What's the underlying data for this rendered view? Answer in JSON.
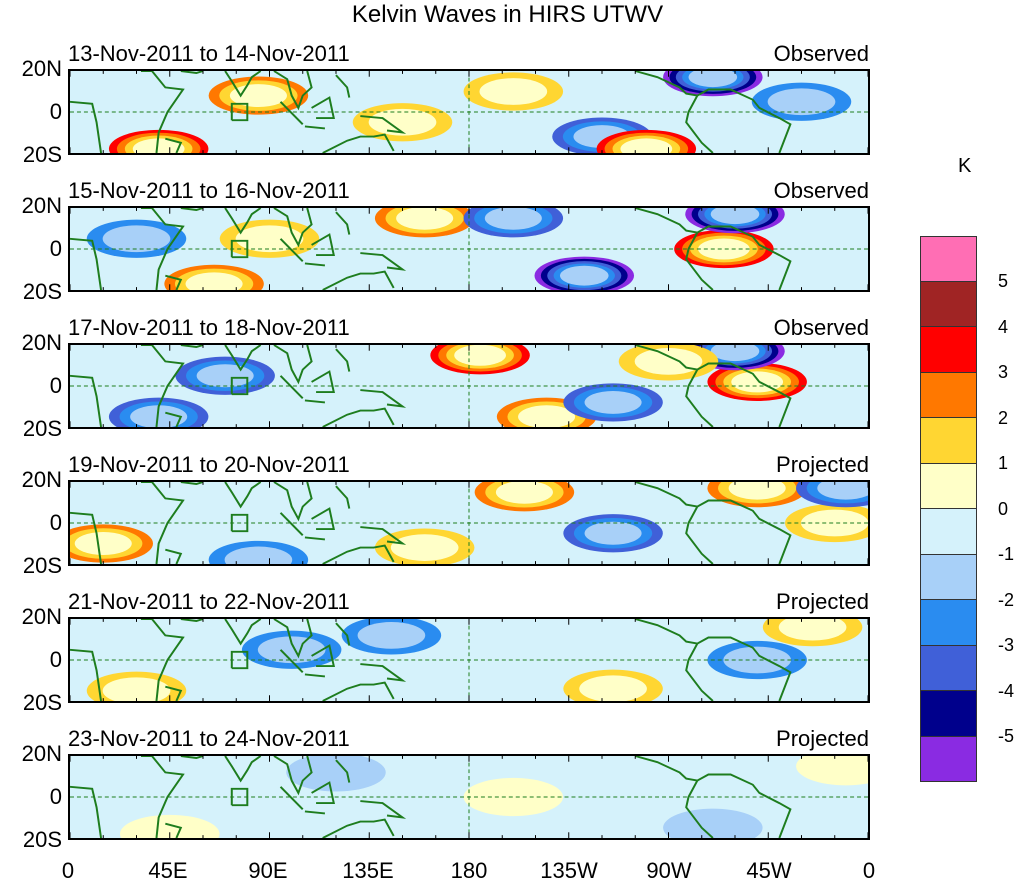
{
  "figure": {
    "title": "Kelvin Waves in HIRS UTWV"
  },
  "panels": [
    {
      "dates": "13-Nov-2011 to 14-Nov-2011",
      "status": "Observed"
    },
    {
      "dates": "15-Nov-2011 to 16-Nov-2011",
      "status": "Observed"
    },
    {
      "dates": "17-Nov-2011 to 18-Nov-2011",
      "status": "Observed"
    },
    {
      "dates": "19-Nov-2011 to 20-Nov-2011",
      "status": "Projected"
    },
    {
      "dates": "21-Nov-2011 to 22-Nov-2011",
      "status": "Projected"
    },
    {
      "dates": "23-Nov-2011 to 24-Nov-2011",
      "status": "Projected"
    }
  ],
  "axes": {
    "y_ticks": [
      "20N",
      "0",
      "20S"
    ],
    "x_ticks": [
      "0",
      "45E",
      "90E",
      "135E",
      "180",
      "135W",
      "90W",
      "45W",
      "0"
    ]
  },
  "colorbar": {
    "unit": "K",
    "labels": [
      "5",
      "4",
      "3",
      "2",
      "1",
      "0",
      "-1",
      "-2",
      "-3",
      "-4",
      "-5"
    ],
    "colors": [
      "#ff6eb4",
      "#a02424",
      "#ff0000",
      "#ff7800",
      "#ffd632",
      "#ffffc8",
      "#d5f2fb",
      "#a8d0f8",
      "#2a8cf0",
      "#4060d8",
      "#00008c",
      "#8a2be2"
    ]
  },
  "chart_data": {
    "type": "heatmap",
    "title": "Kelvin Waves in HIRS UTWV",
    "xlabel": "Longitude",
    "ylabel": "Latitude",
    "xlim": [
      0,
      360
    ],
    "ylim": [
      -20,
      20
    ],
    "colorbar_range": [
      -5,
      5
    ],
    "colorbar_unit": "K",
    "anomalies": [
      [
        {
          "lon": 40,
          "lat": -18,
          "v": 4
        },
        {
          "lon": 85,
          "lat": 8,
          "v": 3
        },
        {
          "lon": 150,
          "lat": -5,
          "v": 2
        },
        {
          "lon": 240,
          "lat": -12,
          "v": -3
        },
        {
          "lon": 290,
          "lat": 17,
          "v": -5
        },
        {
          "lon": 260,
          "lat": -18,
          "v": 4
        },
        {
          "lon": 200,
          "lat": 10,
          "v": 2
        },
        {
          "lon": 330,
          "lat": 5,
          "v": -2
        }
      ],
      [
        {
          "lon": 65,
          "lat": -17,
          "v": 3
        },
        {
          "lon": 160,
          "lat": 15,
          "v": 3
        },
        {
          "lon": 232,
          "lat": -13,
          "v": -5
        },
        {
          "lon": 295,
          "lat": 0,
          "v": 4
        },
        {
          "lon": 300,
          "lat": 17,
          "v": -5
        },
        {
          "lon": 90,
          "lat": 5,
          "v": 2
        },
        {
          "lon": 200,
          "lat": 15,
          "v": -3
        },
        {
          "lon": 30,
          "lat": 5,
          "v": -2
        }
      ],
      [
        {
          "lon": 185,
          "lat": 15,
          "v": 4
        },
        {
          "lon": 310,
          "lat": 2,
          "v": 4
        },
        {
          "lon": 300,
          "lat": 17,
          "v": -5
        },
        {
          "lon": 70,
          "lat": 5,
          "v": -3
        },
        {
          "lon": 215,
          "lat": -15,
          "v": 3
        },
        {
          "lon": 270,
          "lat": 12,
          "v": 2
        },
        {
          "lon": 40,
          "lat": -15,
          "v": -3
        },
        {
          "lon": 245,
          "lat": -8,
          "v": -3
        }
      ],
      [
        {
          "lon": 205,
          "lat": 15,
          "v": 3
        },
        {
          "lon": 310,
          "lat": 17,
          "v": 3
        },
        {
          "lon": 15,
          "lat": -10,
          "v": 3
        },
        {
          "lon": 345,
          "lat": 0,
          "v": 2
        },
        {
          "lon": 245,
          "lat": -5,
          "v": -3
        },
        {
          "lon": 85,
          "lat": -18,
          "v": -2
        },
        {
          "lon": 350,
          "lat": 17,
          "v": -3
        },
        {
          "lon": 160,
          "lat": -12,
          "v": 2
        }
      ],
      [
        {
          "lon": 335,
          "lat": 16,
          "v": 2
        },
        {
          "lon": 30,
          "lat": -15,
          "v": 2
        },
        {
          "lon": 245,
          "lat": -14,
          "v": 2
        },
        {
          "lon": 100,
          "lat": 5,
          "v": -2
        },
        {
          "lon": 145,
          "lat": 12,
          "v": -2
        },
        {
          "lon": 310,
          "lat": 0,
          "v": -2
        }
      ],
      [
        {
          "lon": 350,
          "lat": 15,
          "v": 1
        },
        {
          "lon": 45,
          "lat": -18,
          "v": 1
        },
        {
          "lon": 120,
          "lat": 12,
          "v": -1
        },
        {
          "lon": 200,
          "lat": 0,
          "v": 1
        },
        {
          "lon": 290,
          "lat": -15,
          "v": -1
        }
      ]
    ]
  }
}
